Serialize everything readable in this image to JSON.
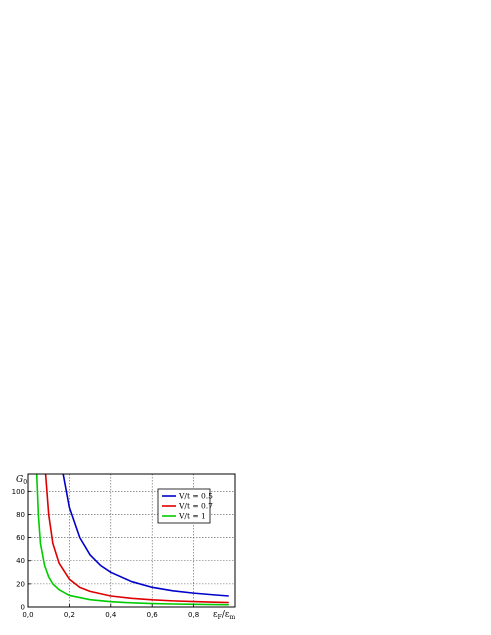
{
  "chart_data": {
    "type": "line",
    "title": "",
    "ylabel": "G",
    "ylabel_sub": "0",
    "xlabel": "ε",
    "xlabel_sub1": "F",
    "xlabel_sep": "/ε",
    "xlabel_sub2": "m",
    "xlim": [
      0,
      1.0
    ],
    "ylim": [
      0,
      115
    ],
    "grid": true,
    "legend_position": "top-right",
    "x_ticks": [
      0.0,
      0.2,
      0.4,
      0.6,
      0.8
    ],
    "x_tick_labels": [
      "0,0",
      "0,2",
      "0,4",
      "0,6",
      "0,8"
    ],
    "y_ticks": [
      0,
      20,
      40,
      60,
      80,
      100
    ],
    "y_tick_labels": [
      "0",
      "20",
      "40",
      "60",
      "80",
      "100"
    ],
    "series": [
      {
        "name": "V/t = 0.5",
        "color": "#0000cc",
        "x": [
          0.17,
          0.2,
          0.25,
          0.3,
          0.35,
          0.4,
          0.5,
          0.6,
          0.7,
          0.8,
          0.9,
          0.97
        ],
        "y": [
          115,
          86,
          60,
          45,
          36,
          30,
          22,
          17,
          14,
          12,
          10.5,
          9.5
        ]
      },
      {
        "name": "V/t = 0.7",
        "color": "#dd0000",
        "x": [
          0.085,
          0.1,
          0.12,
          0.15,
          0.2,
          0.25,
          0.3,
          0.4,
          0.5,
          0.6,
          0.7,
          0.8,
          0.9,
          0.97
        ],
        "y": [
          115,
          80,
          55,
          38,
          24,
          17,
          13.5,
          9.5,
          7.5,
          6.2,
          5.3,
          4.7,
          4.2,
          3.9
        ]
      },
      {
        "name": "V/t = 1",
        "color": "#00cc00",
        "x": [
          0.042,
          0.05,
          0.06,
          0.08,
          0.1,
          0.12,
          0.15,
          0.2,
          0.3,
          0.4,
          0.5,
          0.6,
          0.7,
          0.8,
          0.9,
          0.97
        ],
        "y": [
          115,
          80,
          55,
          36,
          26,
          20,
          15,
          10,
          6.3,
          4.6,
          3.6,
          3.0,
          2.6,
          2.3,
          2.1,
          2.0
        ]
      }
    ]
  }
}
